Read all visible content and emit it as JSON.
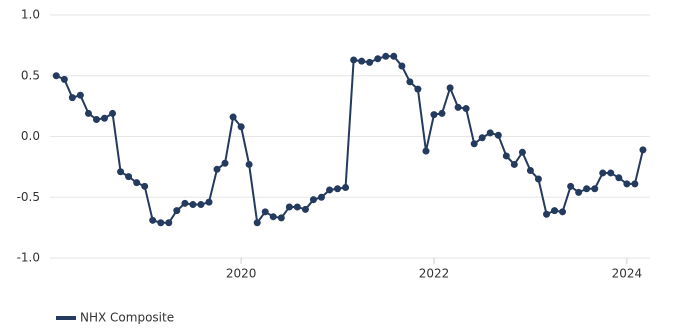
{
  "chart_data": {
    "type": "line",
    "x": [
      2018.083,
      2018.167,
      2018.25,
      2018.333,
      2018.417,
      2018.5,
      2018.583,
      2018.667,
      2018.75,
      2018.833,
      2018.917,
      2019,
      2019.083,
      2019.167,
      2019.25,
      2019.333,
      2019.417,
      2019.5,
      2019.583,
      2019.667,
      2019.75,
      2019.833,
      2019.917,
      2020,
      2020.083,
      2020.167,
      2020.25,
      2020.333,
      2020.417,
      2020.5,
      2020.583,
      2020.667,
      2020.75,
      2020.833,
      2020.917,
      2021,
      2021.083,
      2021.167,
      2021.25,
      2021.333,
      2021.417,
      2021.5,
      2021.583,
      2021.667,
      2021.75,
      2021.833,
      2021.917,
      2022,
      2022.083,
      2022.167,
      2022.25,
      2022.333,
      2022.417,
      2022.5,
      2022.583,
      2022.667,
      2022.75,
      2022.833,
      2022.917,
      2023,
      2023.083,
      2023.167,
      2023.25,
      2023.333,
      2023.417,
      2023.5,
      2023.583,
      2023.667,
      2023.75,
      2023.833,
      2023.917,
      2024,
      2024.083,
      2024.167
    ],
    "series": [
      {
        "name": "NHX Composite",
        "color": "#243a5e",
        "values": [
          0.5,
          0.47,
          0.32,
          0.34,
          0.19,
          0.14,
          0.15,
          0.19,
          -0.29,
          -0.33,
          -0.38,
          -0.41,
          -0.69,
          -0.71,
          -0.71,
          -0.61,
          -0.55,
          -0.56,
          -0.56,
          -0.54,
          -0.27,
          -0.22,
          0.16,
          0.08,
          -0.23,
          -0.71,
          -0.62,
          -0.66,
          -0.67,
          -0.58,
          -0.58,
          -0.6,
          -0.52,
          -0.5,
          -0.44,
          -0.43,
          -0.42,
          0.63,
          0.62,
          0.61,
          0.64,
          0.66,
          0.66,
          0.58,
          0.45,
          0.39,
          -0.12,
          0.18,
          0.19,
          0.4,
          0.24,
          0.23,
          -0.06,
          -0.01,
          0.03,
          0.01,
          -0.16,
          -0.23,
          -0.13,
          -0.28,
          -0.35,
          -0.64,
          -0.61,
          -0.62,
          -0.41,
          -0.46,
          -0.43,
          -0.43,
          -0.3,
          -0.3,
          -0.34,
          -0.39,
          -0.39,
          -0.11
        ]
      }
    ],
    "xlim": [
      2018.07,
      2024.24
    ],
    "xticks": [
      2020,
      2022,
      2024
    ],
    "ylim": [
      -1,
      1
    ],
    "yticks": [
      {
        "value": 1,
        "label": "1.0"
      },
      0.5,
      {
        "value": 0,
        "label": "0.0"
      },
      -0.5,
      {
        "value": -1,
        "label": "-1.0"
      }
    ],
    "grid": true,
    "legend": "bottom-left"
  }
}
